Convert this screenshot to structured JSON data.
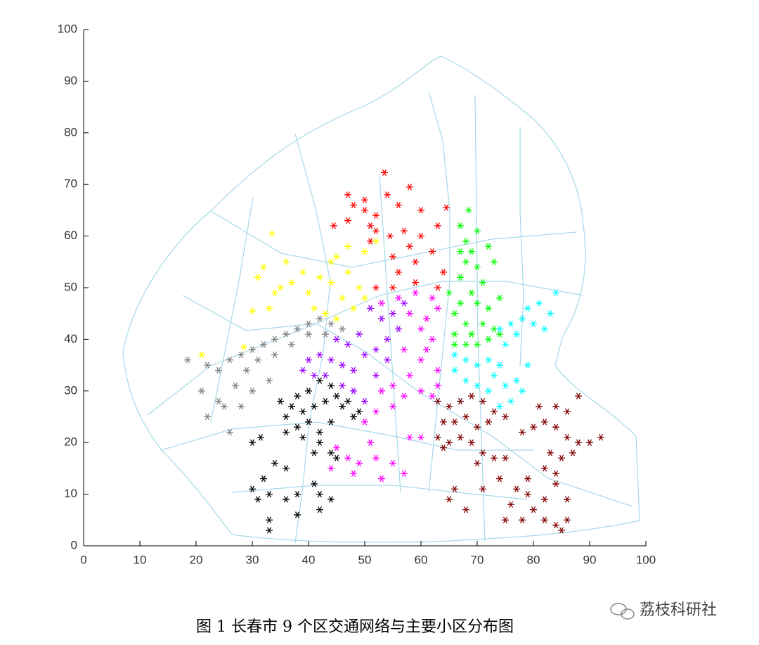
{
  "chart_data": {
    "type": "scatter",
    "xlim": [
      0,
      100
    ],
    "ylim": [
      0,
      100
    ],
    "xticks": [
      0,
      10,
      20,
      30,
      40,
      50,
      60,
      70,
      80,
      90,
      100
    ],
    "yticks": [
      0,
      10,
      20,
      30,
      40,
      50,
      60,
      70,
      80,
      90,
      100
    ],
    "marker": "asterisk",
    "series": [
      {
        "color": "#ff0000",
        "x": [
          53.5,
          47,
          50,
          54,
          58,
          50,
          52,
          44.5,
          47,
          51,
          56,
          60,
          64.5,
          52,
          54.5,
          57,
          60,
          63,
          58,
          62,
          55,
          59,
          56,
          52,
          55,
          59,
          63,
          64,
          51,
          48
        ],
        "y": [
          72.3,
          68,
          67,
          68,
          69.5,
          65,
          64,
          62,
          63,
          62,
          66,
          65,
          65.5,
          61,
          60,
          61,
          60,
          62,
          58,
          57,
          56,
          55,
          53,
          50,
          50,
          51,
          50,
          53,
          59,
          66
        ]
      },
      {
        "color": "#ffff00",
        "x": [
          21,
          28.5,
          30,
          33,
          35,
          31,
          32,
          34,
          37,
          39,
          40,
          42,
          44,
          46,
          48,
          45,
          43,
          41,
          47,
          45,
          47,
          50,
          52,
          44,
          49,
          36,
          33.5,
          50
        ],
        "y": [
          37,
          38.5,
          45.5,
          46,
          50,
          52,
          54,
          49,
          51,
          53,
          49,
          52,
          51,
          48,
          46,
          44,
          45,
          46,
          53,
          56,
          58,
          57,
          59,
          55,
          50,
          55,
          60.5,
          48
        ]
      },
      {
        "color": "#808080",
        "x": [
          18.5,
          21,
          22,
          24,
          26,
          28,
          30,
          32,
          34,
          36,
          38,
          40,
          42,
          44,
          46,
          43,
          40,
          37,
          34,
          31,
          29,
          27,
          25,
          22,
          28,
          30,
          33,
          26,
          24
        ],
        "y": [
          36,
          30,
          35,
          34,
          36,
          37,
          38,
          39,
          40,
          41,
          42,
          43,
          44,
          43,
          42,
          41,
          41,
          39,
          37,
          36,
          34,
          31,
          27,
          25,
          27,
          30,
          32,
          22,
          28
        ]
      },
      {
        "color": "#9900ff",
        "x": [
          39,
          40,
          42,
          44,
          46,
          48,
          50,
          52,
          54,
          56,
          53,
          51,
          49,
          47,
          45,
          48,
          50,
          46,
          43,
          55,
          57,
          52,
          54,
          41
        ],
        "y": [
          34,
          36,
          37,
          36,
          35,
          34,
          37,
          38,
          40,
          42,
          44,
          46,
          41,
          39,
          40,
          30,
          28,
          31,
          33,
          45,
          47,
          33,
          36,
          33
        ]
      },
      {
        "color": "#ff00ff",
        "x": [
          53,
          56,
          59,
          62,
          63,
          61,
          58,
          60,
          62,
          57,
          60,
          63,
          58,
          55,
          57,
          60,
          62,
          53,
          55,
          52,
          50,
          58,
          60,
          45,
          47,
          49,
          52,
          55,
          57,
          48,
          44,
          53,
          51,
          63,
          61
        ],
        "y": [
          47,
          48,
          49,
          48,
          46,
          44,
          45,
          42,
          40,
          38,
          36,
          34,
          33,
          31,
          29,
          30,
          29,
          30,
          27,
          26,
          24,
          21,
          21,
          19,
          17,
          16,
          17,
          16,
          14,
          14,
          15,
          13,
          20,
          31,
          38
        ]
      },
      {
        "color": "#00ff00",
        "x": [
          68.5,
          67,
          70,
          68,
          67,
          69,
          72,
          68,
          70,
          73,
          67,
          71,
          69,
          67,
          70,
          72,
          66,
          68,
          71,
          73,
          66,
          69,
          72,
          74,
          66,
          68,
          70,
          65,
          74
        ],
        "y": [
          65,
          62,
          61,
          59,
          57,
          57,
          58,
          55,
          54,
          55,
          52,
          51,
          49,
          47,
          47,
          46,
          45,
          43,
          43,
          42,
          41,
          41,
          40,
          41,
          39,
          39,
          39,
          49,
          48
        ]
      },
      {
        "color": "#00ffff",
        "x": [
          84,
          81,
          79,
          83,
          78,
          80,
          82,
          76,
          74,
          77,
          66,
          68,
          70,
          72,
          74,
          66,
          68,
          70,
          72,
          75,
          77,
          78,
          76,
          74,
          73,
          79,
          67,
          75
        ],
        "y": [
          49,
          47,
          46,
          45,
          44,
          43,
          42,
          43,
          42,
          41,
          37,
          36,
          35,
          36,
          35,
          34,
          32,
          31,
          30,
          31,
          32,
          30,
          28,
          27,
          33,
          35,
          28,
          39
        ]
      },
      {
        "color": "#000000",
        "x": [
          42,
          44,
          40,
          38,
          45,
          47,
          35,
          37,
          39,
          41,
          43,
          46,
          49,
          36,
          40,
          42,
          44,
          38,
          36,
          39,
          30,
          31.5,
          42,
          44,
          41,
          34,
          36,
          32,
          30,
          31,
          33,
          36,
          38,
          41,
          42,
          44,
          42,
          38,
          33,
          33,
          45,
          48
        ],
        "y": [
          32,
          31,
          30,
          29,
          29,
          28,
          28,
          27,
          26,
          27,
          28,
          27,
          26,
          25,
          24,
          22,
          24,
          23,
          22,
          21,
          20,
          21,
          20,
          18,
          18,
          16,
          15,
          13,
          11,
          9,
          10,
          9,
          10,
          12,
          10,
          9,
          7,
          6,
          5,
          3,
          17,
          25
        ]
      },
      {
        "color": "#800000",
        "x": [
          63,
          65,
          67,
          69,
          71,
          73,
          75,
          64,
          66,
          68,
          70,
          72,
          63,
          65,
          67,
          64,
          69,
          71,
          73,
          70,
          75,
          78,
          80,
          82,
          81,
          84,
          86,
          88,
          84,
          86,
          88,
          90,
          92,
          83,
          85,
          87,
          84,
          84,
          82,
          79,
          77,
          79,
          82,
          80,
          78,
          82,
          84,
          86,
          85,
          86,
          76,
          75,
          74,
          66,
          65,
          68,
          71
        ],
        "y": [
          28,
          27,
          28,
          29,
          28,
          26,
          25,
          24,
          24,
          25,
          23,
          24,
          21,
          20,
          21,
          19,
          20,
          18,
          17,
          16,
          17,
          22,
          23,
          24,
          27,
          27,
          26,
          29,
          23,
          21,
          20,
          20,
          21,
          18,
          17,
          18,
          14,
          12,
          15,
          13,
          11,
          10,
          9,
          7,
          5,
          5,
          4,
          5,
          3,
          9,
          8,
          5,
          13,
          11,
          9,
          7,
          11
        ]
      }
    ]
  },
  "caption": "图 1  长春市 9 个区交通网络与主要小区分布图",
  "watermark": "荔枝科研社"
}
